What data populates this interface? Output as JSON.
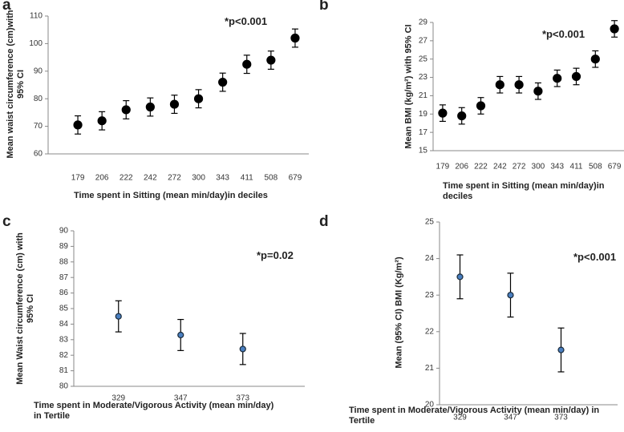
{
  "chart_data": [
    {
      "type": "scatter",
      "panel_label": "a",
      "annotation": "*p<0.001",
      "y_label": "Mean waist circumference (cm)with 95% CI",
      "x_label": "Time spent in Sitting (mean min/day)in deciles",
      "categories": [
        "179",
        "206",
        "222",
        "242",
        "272",
        "300",
        "343",
        "411",
        "508",
        "679"
      ],
      "values": [
        70.5,
        72,
        76,
        77,
        78,
        80,
        86,
        92.5,
        94,
        102
      ],
      "errors": [
        3.3,
        3.3,
        3.3,
        3.3,
        3.3,
        3.3,
        3.3,
        3.3,
        3.3,
        3.3
      ],
      "color": "#000000",
      "ylim": [
        60,
        110
      ],
      "yticks": [
        60,
        70,
        80,
        90,
        100,
        110
      ]
    },
    {
      "type": "scatter",
      "panel_label": "b",
      "annotation": "*p<0.001",
      "y_label": "Mean BMI (kg/m²) with 95% CI",
      "x_label": "Time spent in Sitting (mean min/day)in deciles",
      "categories": [
        "179",
        "206",
        "222",
        "242",
        "272",
        "300",
        "343",
        "411",
        "508",
        "679"
      ],
      "values": [
        19.1,
        18.8,
        19.9,
        22.2,
        22.2,
        21.5,
        22.9,
        23.1,
        25.0,
        28.3
      ],
      "errors": [
        0.9,
        0.9,
        0.9,
        0.9,
        0.9,
        0.9,
        0.9,
        0.9,
        0.9,
        0.9
      ],
      "color": "#000000",
      "ylim": [
        15,
        29
      ],
      "yticks": [
        15,
        17,
        19,
        21,
        23,
        25,
        27,
        29
      ]
    },
    {
      "type": "scatter",
      "panel_label": "c",
      "annotation": "*p=0.02",
      "y_label": "Mean Waist circumference (cm) with 95% CI",
      "x_label": "Time spent in Moderate/Vigorous Activity (mean min/day) in Tertile",
      "categories": [
        "329",
        "347",
        "373"
      ],
      "values": [
        84.5,
        83.3,
        82.4
      ],
      "errors": [
        1.0,
        1.0,
        1.0
      ],
      "color": "#4a7fc0",
      "ylim": [
        80,
        90
      ],
      "yticks": [
        80,
        81,
        82,
        83,
        84,
        85,
        86,
        87,
        88,
        89,
        90
      ]
    },
    {
      "type": "scatter",
      "panel_label": "d",
      "annotation": "*p<0.001",
      "y_label": "Mean (95% CI) BMI (Kg/m²)",
      "x_label": "Time spent in Moderate/Vigorous Activity (mean min/day) in Tertile",
      "categories": [
        "329",
        "347",
        "373"
      ],
      "values": [
        23.5,
        23.0,
        21.5
      ],
      "errors": [
        0.6,
        0.6,
        0.6
      ],
      "color": "#4a7fc0",
      "ylim": [
        20,
        25
      ],
      "yticks": [
        20,
        21,
        22,
        23,
        24,
        25
      ]
    }
  ]
}
